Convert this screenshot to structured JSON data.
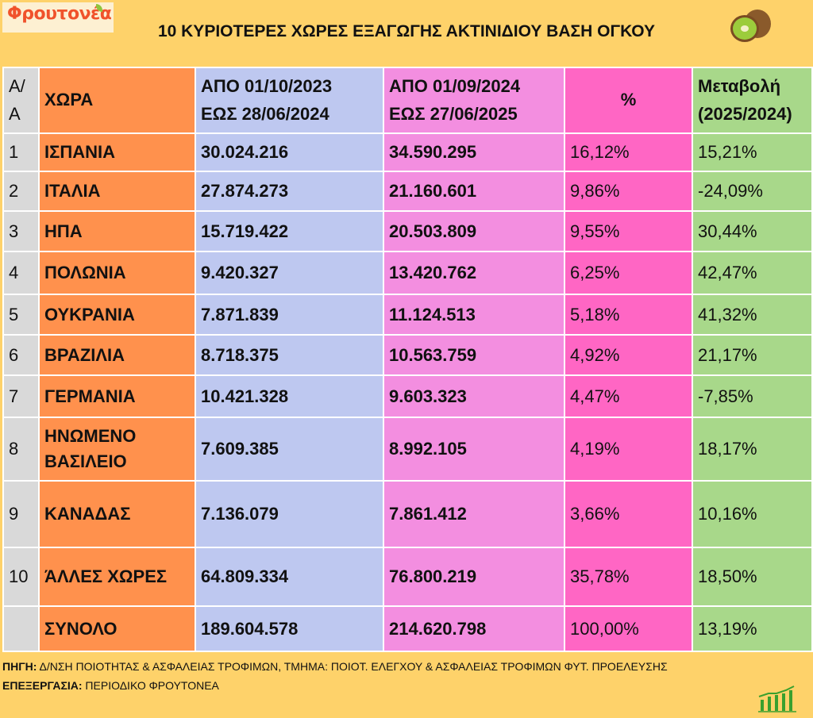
{
  "logo": {
    "text": "Φρουτονέα"
  },
  "title": "10 ΚΥΡΙΟΤΕΡΕΣ ΧΩΡΕΣ ΕΞΑΓΩΓΗΣ ΑΚΤΙΝΙΔΙΟΥ ΒΑΣΗ ΟΓΚΟΥ",
  "header": {
    "aa": "Α/Α",
    "country": "ΧΩΡΑ",
    "p1_line1": "ΑΠΟ 01/10/2023",
    "p1_line2": "ΕΩΣ 28/06/2024",
    "p2_line1": "ΑΠΟ 01/09/2024",
    "p2_line2": "ΕΩΣ  27/06/2025",
    "pct": "%",
    "change_line1": "Μεταβολή",
    "change_line2": "(2025/2024)"
  },
  "rows": [
    {
      "aa": "1",
      "country": "ΙΣΠΑΝΙΑ",
      "p1": "30.024.216",
      "p2": "34.590.295",
      "pct": "16,12%",
      "change": "15,21%"
    },
    {
      "aa": "2",
      "country": "ΙΤΑΛΙΑ",
      "p1": "27.874.273",
      "p2": "21.160.601",
      "pct": "9,86%",
      "change": "-24,09%"
    },
    {
      "aa": "3",
      "country": "ΗΠΑ",
      "p1": "15.719.422",
      "p2": "20.503.809",
      "pct": "9,55%",
      "change": "30,44%"
    },
    {
      "aa": "4",
      "country": "ΠΟΛΩΝΙΑ",
      "p1": "9.420.327",
      "p2": "13.420.762",
      "pct": "6,25%",
      "change": "42,47%"
    },
    {
      "aa": "5",
      "country": "ΟΥΚΡΑΝΙΑ",
      "p1": "7.871.839",
      "p2": "11.124.513",
      "pct": "5,18%",
      "change": "41,32%"
    },
    {
      "aa": "6",
      "country": "ΒΡΑΖΙΛΙΑ",
      "p1": "8.718.375",
      "p2": "10.563.759",
      "pct": "4,92%",
      "change": "21,17%"
    },
    {
      "aa": "7",
      "country": "ΓΕΡΜΑΝΙΑ",
      "p1": "10.421.328",
      "p2": "9.603.323",
      "pct": "4,47%",
      "change": "-7,85%"
    },
    {
      "aa": "8",
      "country": "ΗΝΩΜΕΝΟ ΒΑΣΙΛΕΙΟ",
      "p1": "7.609.385",
      "p2": "8.992.105",
      "pct": "4,19%",
      "change": "18,17%"
    },
    {
      "aa": "9",
      "country": "ΚΑΝΑΔΑΣ",
      "p1": "7.136.079",
      "p2": "7.861.412",
      "pct": "3,66%",
      "change": "10,16%"
    },
    {
      "aa": "10",
      "country": "ΆΛΛΕΣ ΧΩΡΕΣ",
      "p1": "64.809.334",
      "p2": "76.800.219",
      "pct": "35,78%",
      "change": "18,50%"
    },
    {
      "aa": "",
      "country": "ΣΥΝΟΛΟ",
      "p1": "189.604.578",
      "p2": "214.620.798",
      "pct": "100,00%",
      "change": "13,19%"
    }
  ],
  "footer": {
    "source_label": "ΠΗΓΗ:",
    "source": " Δ/ΝΣΗ ΠΟΙΟΤΗΤΑΣ & ΑΣΦΑΛΕΙΑΣ ΤΡΟΦΙΜΩΝ, ΤΜΗΜΑ: ΠΟΙΟΤ. ΕΛΕΓΧΟΥ & ΑΣΦΑΛΕΙΑΣ ΤΡΟΦΙΜΩΝ ΦΥΤ. ΠΡΟΕΛΕΥΣΗΣ",
    "processing_label": "ΕΠΕΞΕΡΓΑΣΙΑ:",
    "processing": " ΠΕΡΙΟΔΙΚΟ ΦΡΟΥΤΟΝΕΑ"
  }
}
